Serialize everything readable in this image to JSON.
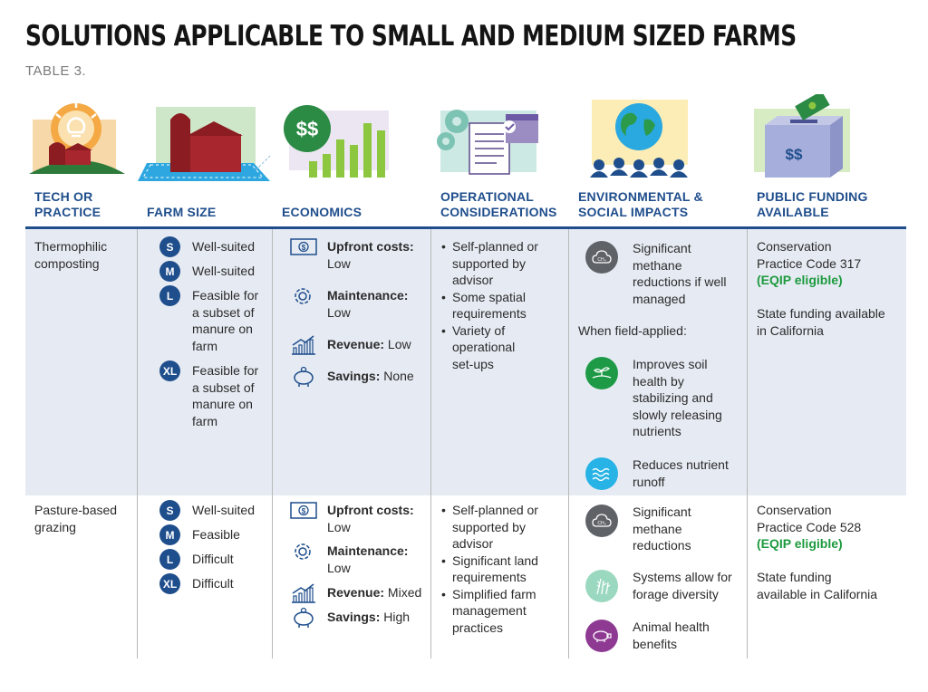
{
  "header": {
    "title": "SOLUTIONS APPLICABLE TO SMALL AND MEDIUM SIZED FARMS",
    "subtitle": "TABLE 3."
  },
  "columns": {
    "tech": [
      "TECH OR",
      "PRACTICE"
    ],
    "size": "FARM SIZE",
    "econ": "ECONOMICS",
    "ops": [
      "OPERATIONAL",
      "CONSIDERATIONS"
    ],
    "env": [
      "ENVIRONMENTAL &",
      "SOCIAL IMPACTS"
    ],
    "funding": [
      "PUBLIC FUNDING",
      "AVAILABLE"
    ]
  },
  "icons": {
    "tech": "lightbulb-barn-icon",
    "size": "barn-field-icon",
    "econ": "dollar-bar-chart-icon",
    "ops": "gears-checklist-calendar-icon",
    "env": "globe-audience-icon",
    "funding": "donation-box-icon"
  },
  "colors": {
    "accent_blue": "#1f4e8c",
    "row_shade": "#e6ebf3",
    "eligible_green": "#1d9a3e",
    "methane_grey": "#5f6368",
    "soil_green": "#1e9a47",
    "water_blue": "#27b3e6",
    "forage_mint": "#9bd8c0",
    "animal_purple": "#8e3a93"
  },
  "rows": [
    {
      "practice": [
        "Thermophilic",
        "composting"
      ],
      "sizes": [
        {
          "badge": "S",
          "lines": [
            "Well-suited"
          ]
        },
        {
          "badge": "M",
          "lines": [
            "Well-suited"
          ]
        },
        {
          "badge": "L",
          "lines": [
            "Feasible for",
            "a subset of",
            "manure on",
            "farm"
          ]
        },
        {
          "badge": "XL",
          "lines": [
            "Feasible for",
            "a subset of",
            "manure on",
            "farm"
          ]
        }
      ],
      "economics": {
        "upfront": {
          "label": "Upfront costs:",
          "value": "Low"
        },
        "maintenance": {
          "label": "Maintenance:",
          "value": "Low"
        },
        "revenue": {
          "label": "Revenue:",
          "value": "Low"
        },
        "savings": {
          "label": "Savings:",
          "value": "None"
        }
      },
      "ops": [
        [
          "Self-planned or",
          "supported by",
          "advisor"
        ],
        [
          "Some spatial",
          "requirements"
        ],
        [
          "Variety of",
          "operational",
          "set-ups"
        ]
      ],
      "impacts": [
        {
          "icon": "methane-cloud-icon",
          "lines": [
            "Significant",
            "methane",
            "reductions if well",
            "managed"
          ]
        },
        {
          "icon": "soil-sprout-icon",
          "lines": [
            "Improves soil",
            "health by",
            "stabilizing and",
            "slowly releasing",
            "nutrients"
          ]
        },
        {
          "icon": "water-waves-icon",
          "lines": [
            "Reduces nutrient",
            "runoff"
          ]
        }
      ],
      "impacts_note": "When field-applied:",
      "funding": {
        "code": [
          "Conservation",
          "Practice Code 317"
        ],
        "eligible": "(EQIP eligible)",
        "state": [
          "State funding available",
          "in California"
        ]
      }
    },
    {
      "practice": [
        "Pasture-based",
        "grazing"
      ],
      "sizes": [
        {
          "badge": "S",
          "lines": [
            "Well-suited"
          ]
        },
        {
          "badge": "M",
          "lines": [
            "Feasible"
          ]
        },
        {
          "badge": "L",
          "lines": [
            "Difficult"
          ]
        },
        {
          "badge": "XL",
          "lines": [
            "Difficult"
          ]
        }
      ],
      "economics": {
        "upfront": {
          "label": "Upfront costs:",
          "value": "Low"
        },
        "maintenance": {
          "label": "Maintenance:",
          "value": "Low"
        },
        "revenue": {
          "label": "Revenue:",
          "value": "Mixed"
        },
        "savings": {
          "label": "Savings:",
          "value": "High"
        }
      },
      "ops": [
        [
          "Self-planned or",
          "supported by",
          "advisor"
        ],
        [
          "Significant land",
          "requirements"
        ],
        [
          "Simplified farm",
          "management",
          "practices"
        ]
      ],
      "impacts": [
        {
          "icon": "methane-cloud-icon",
          "lines": [
            "Significant",
            "methane",
            "reductions"
          ]
        },
        {
          "icon": "forage-grass-icon",
          "lines": [
            "Systems allow for",
            "forage diversity"
          ]
        },
        {
          "icon": "animal-pig-icon",
          "lines": [
            "Animal health",
            "benefits"
          ]
        }
      ],
      "funding": {
        "code": [
          "Conservation",
          "Practice Code 528"
        ],
        "eligible": "(EQIP eligible)",
        "state": [
          "State funding",
          "available in California"
        ]
      }
    }
  ]
}
